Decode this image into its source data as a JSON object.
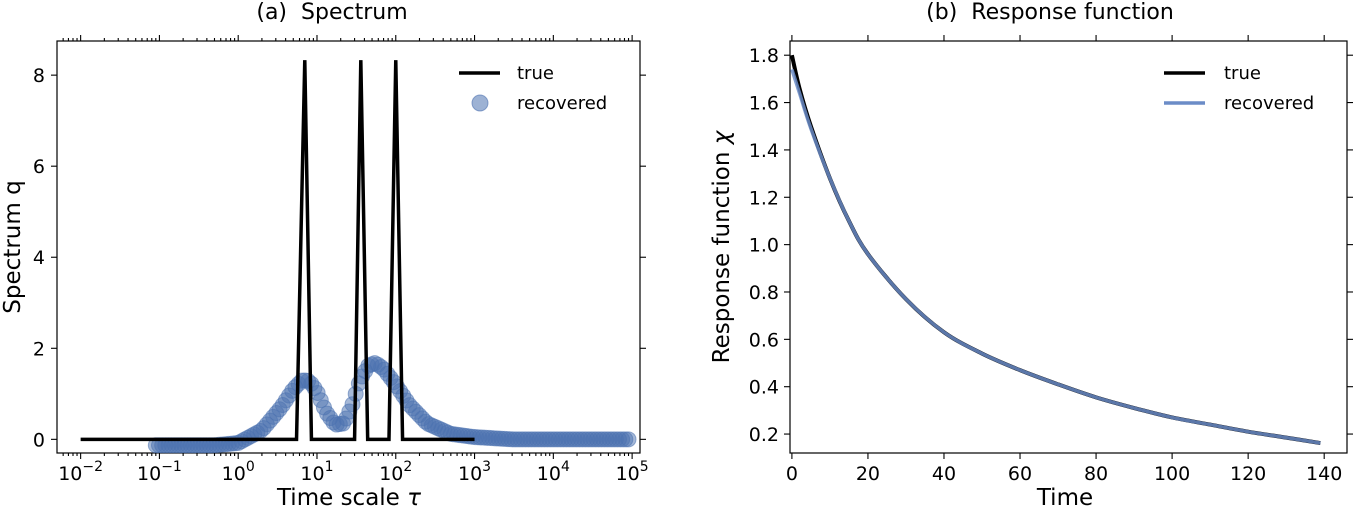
{
  "chart_data": [
    {
      "id": "spectrum",
      "type": "line",
      "title_prefix": "(a)",
      "title": "Spectrum",
      "xlabel_main": "Time scale ",
      "xlabel_symbol": "τ",
      "ylabel": "Spectrum q",
      "xscale": "log",
      "xlim_exp": [
        -2.3,
        5.1
      ],
      "ylim": [
        -0.3,
        8.75
      ],
      "x_ticks": [
        {
          "exp": -2,
          "label_base": "10",
          "label_exp": "−2"
        },
        {
          "exp": -1,
          "label_base": "10",
          "label_exp": "−1"
        },
        {
          "exp": 0,
          "label_base": "10",
          "label_exp": "0"
        },
        {
          "exp": 1,
          "label_base": "10",
          "label_exp": "1"
        },
        {
          "exp": 2,
          "label_base": "10",
          "label_exp": "2"
        },
        {
          "exp": 3,
          "label_base": "10",
          "label_exp": "3"
        },
        {
          "exp": 4,
          "label_base": "10",
          "label_exp": "4"
        },
        {
          "exp": 5,
          "label_base": "10",
          "label_exp": "5"
        }
      ],
      "y_ticks": [
        {
          "value": 0,
          "label": "0"
        },
        {
          "value": 2,
          "label": "2"
        },
        {
          "value": 4,
          "label": "4"
        },
        {
          "value": 6,
          "label": "6"
        },
        {
          "value": 8,
          "label": "8"
        }
      ],
      "legend": {
        "position": "top-right",
        "true_label": "true",
        "recovered_label": "recovered"
      },
      "series": [
        {
          "name": "true",
          "style": "line",
          "color": "#000000",
          "points": [
            [
              0.01,
              0
            ],
            [
              5.5,
              0
            ],
            [
              7,
              8.33
            ],
            [
              8.5,
              0
            ],
            [
              30,
              0
            ],
            [
              36,
              8.33
            ],
            [
              44,
              0
            ],
            [
              82,
              0
            ],
            [
              100,
              8.33
            ],
            [
              122,
              0
            ],
            [
              1000,
              0
            ]
          ]
        },
        {
          "name": "recovered",
          "style": "markers",
          "color": "#4c72b0",
          "x_range": [
            0.09,
            90000
          ],
          "count": 150,
          "profile": [
            [
              0.09,
              -0.13
            ],
            [
              0.5,
              -0.13
            ],
            [
              1.0,
              -0.08
            ],
            [
              2.0,
              0.2
            ],
            [
              3.5,
              0.7
            ],
            [
              5.0,
              1.1
            ],
            [
              6.5,
              1.3
            ],
            [
              8.0,
              1.28
            ],
            [
              10.0,
              1.05
            ],
            [
              13.0,
              0.6
            ],
            [
              17.0,
              0.32
            ],
            [
              22.0,
              0.35
            ],
            [
              28.0,
              0.75
            ],
            [
              35.0,
              1.3
            ],
            [
              45.0,
              1.62
            ],
            [
              55.0,
              1.68
            ],
            [
              70.0,
              1.55
            ],
            [
              100.0,
              1.2
            ],
            [
              150.0,
              0.75
            ],
            [
              250.0,
              0.35
            ],
            [
              500.0,
              0.12
            ],
            [
              1000.0,
              0.05
            ],
            [
              3000.0,
              0.0
            ],
            [
              10000.0,
              0.0
            ],
            [
              90000.0,
              0.0
            ]
          ]
        }
      ]
    },
    {
      "id": "response",
      "type": "line",
      "title_prefix": "(b)",
      "title": "Response function",
      "xlabel_main": "Time",
      "ylabel_main": "Response function ",
      "ylabel_symbol": "χ",
      "xlim": [
        -0.5,
        146
      ],
      "ylim": [
        0.12,
        1.86
      ],
      "x_ticks": [
        {
          "value": 0,
          "label": "0"
        },
        {
          "value": 20,
          "label": "20"
        },
        {
          "value": 40,
          "label": "40"
        },
        {
          "value": 60,
          "label": "60"
        },
        {
          "value": 80,
          "label": "80"
        },
        {
          "value": 100,
          "label": "100"
        },
        {
          "value": 120,
          "label": "120"
        },
        {
          "value": 140,
          "label": "140"
        }
      ],
      "y_ticks": [
        {
          "value": 0.2,
          "label": "0.2"
        },
        {
          "value": 0.4,
          "label": "0.4"
        },
        {
          "value": 0.6,
          "label": "0.6"
        },
        {
          "value": 0.8,
          "label": "0.8"
        },
        {
          "value": 1.0,
          "label": "1.0"
        },
        {
          "value": 1.2,
          "label": "1.2"
        },
        {
          "value": 1.4,
          "label": "1.4"
        },
        {
          "value": 1.6,
          "label": "1.6"
        },
        {
          "value": 1.8,
          "label": "1.8"
        }
      ],
      "legend": {
        "position": "top-right",
        "true_label": "true",
        "recovered_label": "recovered"
      },
      "series": [
        {
          "name": "true",
          "color": "#000000",
          "points": [
            [
              0,
              1.8
            ],
            [
              2,
              1.66
            ],
            [
              5,
              1.5
            ],
            [
              10,
              1.28
            ],
            [
              15,
              1.1
            ],
            [
              20,
              0.96
            ],
            [
              30,
              0.77
            ],
            [
              40,
              0.63
            ],
            [
              50,
              0.54
            ],
            [
              60,
              0.47
            ],
            [
              70,
              0.41
            ],
            [
              80,
              0.355
            ],
            [
              90,
              0.31
            ],
            [
              100,
              0.27
            ],
            [
              110,
              0.24
            ],
            [
              120,
              0.21
            ],
            [
              130,
              0.185
            ],
            [
              139,
              0.162
            ]
          ]
        },
        {
          "name": "recovered",
          "color": "#6b8cc7",
          "points": [
            [
              0,
              1.74
            ],
            [
              2,
              1.64
            ],
            [
              5,
              1.49
            ],
            [
              10,
              1.28
            ],
            [
              15,
              1.1
            ],
            [
              20,
              0.96
            ],
            [
              30,
              0.77
            ],
            [
              40,
              0.63
            ],
            [
              50,
              0.54
            ],
            [
              60,
              0.47
            ],
            [
              70,
              0.41
            ],
            [
              80,
              0.355
            ],
            [
              90,
              0.31
            ],
            [
              100,
              0.27
            ],
            [
              110,
              0.24
            ],
            [
              120,
              0.21
            ],
            [
              130,
              0.185
            ],
            [
              139,
              0.162
            ]
          ]
        }
      ]
    }
  ]
}
